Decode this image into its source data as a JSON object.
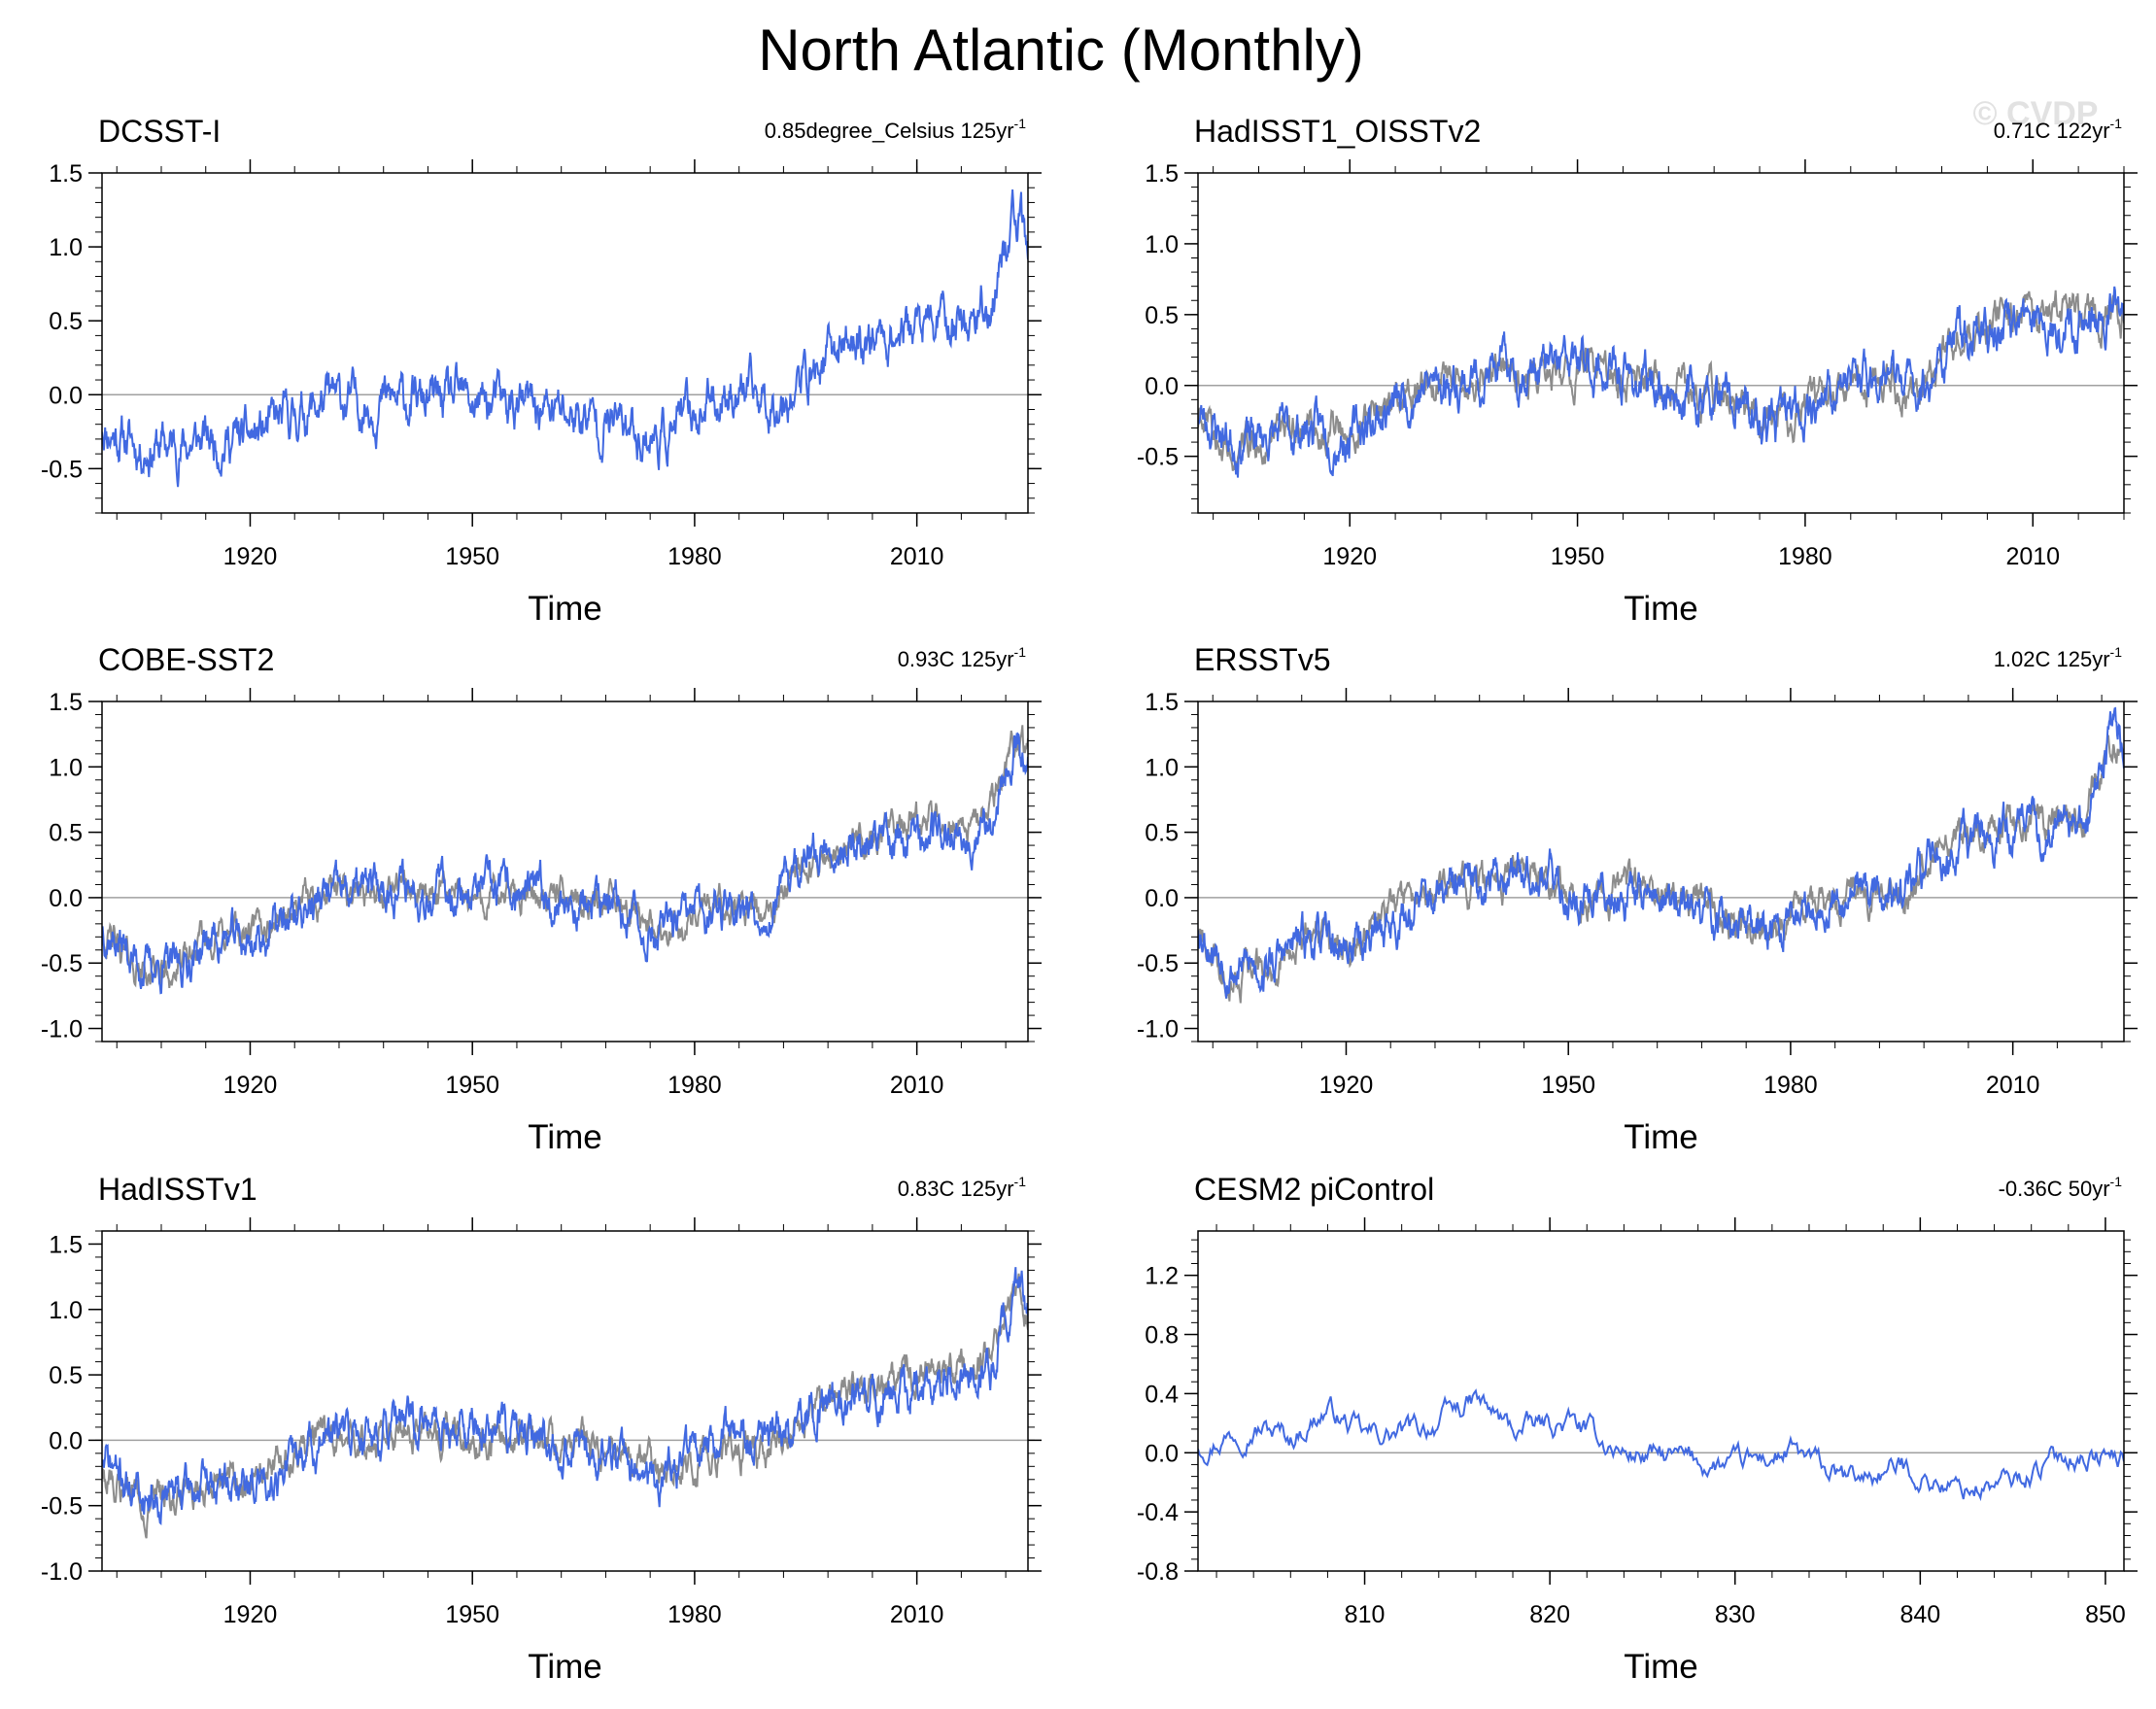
{
  "title": "North Atlantic (Monthly)",
  "watermark": "© CVDP",
  "xlabel": "Time",
  "colors": {
    "model": "#4169e1",
    "obs": "#8c8c8c",
    "zero": "#a0a0a0",
    "frame": "#000000"
  },
  "panels": [
    {
      "name": "DCSST-I",
      "trend_value": "0.85degree_Celsius 125yr",
      "trend_exp": "-1",
      "xlim": [
        1900,
        2025
      ],
      "xticks": [
        1920,
        1950,
        1980,
        2010
      ],
      "xtick_labels": [
        "1920",
        "1950",
        "1980",
        "2010"
      ],
      "ylim": [
        -0.8,
        1.5
      ],
      "yticks": [
        -0.5,
        0.0,
        0.5,
        1.0,
        1.5
      ],
      "ytick_labels": [
        "-0.5",
        "0.0",
        "0.5",
        "1.0",
        "1.5"
      ],
      "show_obs": false,
      "seed": 11,
      "anchors": [
        [
          1900,
          -0.2
        ],
        [
          1905,
          -0.35
        ],
        [
          1910,
          -0.35
        ],
        [
          1915,
          -0.3
        ],
        [
          1920,
          -0.3
        ],
        [
          1930,
          -0.05
        ],
        [
          1940,
          -0.05
        ],
        [
          1950,
          -0.05
        ],
        [
          1960,
          -0.1
        ],
        [
          1970,
          -0.2
        ],
        [
          1975,
          -0.3
        ],
        [
          1985,
          0.05
        ],
        [
          1990,
          -0.05
        ],
        [
          1995,
          0.1
        ],
        [
          2000,
          0.35
        ],
        [
          2005,
          0.4
        ],
        [
          2010,
          0.45
        ],
        [
          2015,
          0.5
        ],
        [
          2020,
          0.6
        ],
        [
          2023,
          1.2
        ],
        [
          2025,
          1.0
        ]
      ]
    },
    {
      "name": "HadISST1_OISSTv2",
      "trend_value": "0.71C 122yr",
      "trend_exp": "-1",
      "xlim": [
        1900,
        2022
      ],
      "xticks": [
        1920,
        1950,
        1980,
        2010
      ],
      "xtick_labels": [
        "1920",
        "1950",
        "1980",
        "2010"
      ],
      "ylim": [
        -0.9,
        1.5
      ],
      "yticks": [
        -0.5,
        0.0,
        0.5,
        1.0,
        1.5
      ],
      "ytick_labels": [
        "-0.5",
        "0.0",
        "0.5",
        "1.0",
        "1.5"
      ],
      "show_obs": true,
      "seed": 23,
      "anchors": [
        [
          1900,
          -0.2
        ],
        [
          1905,
          -0.4
        ],
        [
          1910,
          -0.35
        ],
        [
          1915,
          -0.3
        ],
        [
          1920,
          -0.35
        ],
        [
          1930,
          0.0
        ],
        [
          1940,
          0.1
        ],
        [
          1950,
          0.15
        ],
        [
          1960,
          0.0
        ],
        [
          1970,
          -0.15
        ],
        [
          1975,
          -0.3
        ],
        [
          1985,
          0.0
        ],
        [
          1990,
          0.1
        ],
        [
          1995,
          -0.05
        ],
        [
          2000,
          0.35
        ],
        [
          2005,
          0.4
        ],
        [
          2010,
          0.45
        ],
        [
          2015,
          0.45
        ],
        [
          2022,
          0.5
        ]
      ]
    },
    {
      "name": "COBE-SST2",
      "trend_value": "0.93C 125yr",
      "trend_exp": "-1",
      "xlim": [
        1900,
        2025
      ],
      "xticks": [
        1920,
        1950,
        1980,
        2010
      ],
      "xtick_labels": [
        "1920",
        "1950",
        "1980",
        "2010"
      ],
      "ylim": [
        -1.1,
        1.5
      ],
      "yticks": [
        -1.0,
        -0.5,
        0.0,
        0.5,
        1.0,
        1.5
      ],
      "ytick_labels": [
        "-1.0",
        "-0.5",
        "0.0",
        "0.5",
        "1.0",
        "1.5"
      ],
      "show_obs": true,
      "seed": 37,
      "anchors": [
        [
          1900,
          -0.2
        ],
        [
          1905,
          -0.5
        ],
        [
          1910,
          -0.55
        ],
        [
          1915,
          -0.3
        ],
        [
          1920,
          -0.35
        ],
        [
          1930,
          0.0
        ],
        [
          1940,
          0.1
        ],
        [
          1950,
          0.05
        ],
        [
          1960,
          0.0
        ],
        [
          1970,
          -0.1
        ],
        [
          1975,
          -0.3
        ],
        [
          1985,
          0.0
        ],
        [
          1990,
          -0.1
        ],
        [
          1995,
          0.3
        ],
        [
          2000,
          0.4
        ],
        [
          2005,
          0.45
        ],
        [
          2010,
          0.5
        ],
        [
          2015,
          0.5
        ],
        [
          2020,
          0.6
        ],
        [
          2023,
          1.2
        ],
        [
          2025,
          1.1
        ]
      ]
    },
    {
      "name": "ERSSTv5",
      "trend_value": "1.02C 125yr",
      "trend_exp": "-1",
      "xlim": [
        1900,
        2025
      ],
      "xticks": [
        1920,
        1950,
        1980,
        2010
      ],
      "xtick_labels": [
        "1920",
        "1950",
        "1980",
        "2010"
      ],
      "ylim": [
        -1.1,
        1.5
      ],
      "yticks": [
        -1.0,
        -0.5,
        0.0,
        0.5,
        1.0,
        1.5
      ],
      "ytick_labels": [
        "-1.0",
        "-0.5",
        "0.0",
        "0.5",
        "1.0",
        "1.5"
      ],
      "show_obs": true,
      "seed": 53,
      "anchors": [
        [
          1900,
          -0.2
        ],
        [
          1905,
          -0.55
        ],
        [
          1910,
          -0.5
        ],
        [
          1915,
          -0.3
        ],
        [
          1920,
          -0.4
        ],
        [
          1930,
          -0.05
        ],
        [
          1940,
          0.15
        ],
        [
          1945,
          0.3
        ],
        [
          1950,
          0.0
        ],
        [
          1960,
          0.05
        ],
        [
          1970,
          -0.15
        ],
        [
          1975,
          -0.3
        ],
        [
          1985,
          0.0
        ],
        [
          1990,
          0.1
        ],
        [
          1995,
          0.0
        ],
        [
          2000,
          0.35
        ],
        [
          2005,
          0.45
        ],
        [
          2010,
          0.5
        ],
        [
          2015,
          0.5
        ],
        [
          2020,
          0.6
        ],
        [
          2023,
          1.2
        ],
        [
          2025,
          1.2
        ]
      ]
    },
    {
      "name": "HadISSTv1",
      "trend_value": "0.83C 125yr",
      "trend_exp": "-1",
      "xlim": [
        1900,
        2025
      ],
      "xticks": [
        1920,
        1950,
        1980,
        2010
      ],
      "xtick_labels": [
        "1920",
        "1950",
        "1980",
        "2010"
      ],
      "ylim": [
        -1.0,
        1.6
      ],
      "yticks": [
        -1.0,
        -0.5,
        0.0,
        0.5,
        1.0,
        1.5
      ],
      "ytick_labels": [
        "-1.0",
        "-0.5",
        "0.0",
        "0.5",
        "1.0",
        "1.5"
      ],
      "show_obs": true,
      "seed": 71,
      "anchors": [
        [
          1900,
          -0.15
        ],
        [
          1905,
          -0.4
        ],
        [
          1910,
          -0.4
        ],
        [
          1915,
          -0.35
        ],
        [
          1920,
          -0.35
        ],
        [
          1930,
          0.0
        ],
        [
          1940,
          0.1
        ],
        [
          1950,
          0.1
        ],
        [
          1960,
          0.0
        ],
        [
          1970,
          -0.15
        ],
        [
          1975,
          -0.3
        ],
        [
          1985,
          0.0
        ],
        [
          1990,
          -0.05
        ],
        [
          1995,
          0.25
        ],
        [
          2000,
          0.35
        ],
        [
          2005,
          0.4
        ],
        [
          2010,
          0.45
        ],
        [
          2015,
          0.5
        ],
        [
          2020,
          0.6
        ],
        [
          2023,
          1.2
        ],
        [
          2025,
          1.0
        ]
      ]
    },
    {
      "name": "CESM2 piControl",
      "trend_value": "-0.36C 50yr",
      "trend_exp": "-1",
      "xlim": [
        801,
        851
      ],
      "xticks": [
        810,
        820,
        830,
        840,
        850
      ],
      "xtick_labels": [
        "810",
        "820",
        "830",
        "840",
        "850"
      ],
      "ylim": [
        -0.8,
        1.5
      ],
      "yticks": [
        -0.8,
        -0.4,
        0.0,
        0.4,
        0.8,
        1.2
      ],
      "ytick_labels": [
        "-0.8",
        "-0.4",
        "0.0",
        "0.4",
        "0.8",
        "1.2"
      ],
      "show_obs": false,
      "seed": 97,
      "anchors": [
        [
          801,
          0.05
        ],
        [
          804,
          0.2
        ],
        [
          806,
          0.1
        ],
        [
          808,
          0.3
        ],
        [
          810,
          0.1
        ],
        [
          813,
          0.15
        ],
        [
          816,
          0.35
        ],
        [
          818,
          0.15
        ],
        [
          821,
          0.2
        ],
        [
          824,
          0.0
        ],
        [
          827,
          -0.05
        ],
        [
          830,
          -0.1
        ],
        [
          833,
          0.0
        ],
        [
          836,
          -0.2
        ],
        [
          839,
          -0.1
        ],
        [
          842,
          -0.25
        ],
        [
          845,
          -0.2
        ],
        [
          848,
          0.0
        ],
        [
          851,
          -0.05
        ]
      ]
    }
  ]
}
